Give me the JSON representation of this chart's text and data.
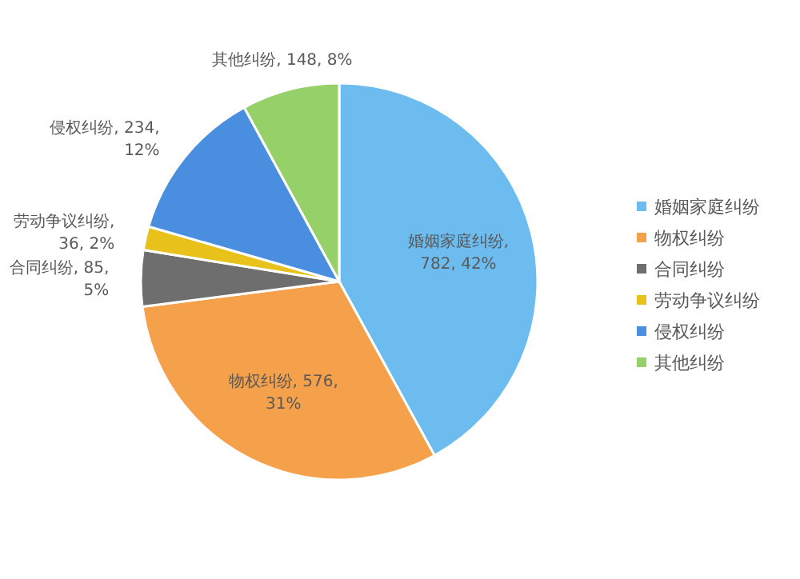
{
  "chart_data": {
    "type": "pie",
    "categories": [
      "婚姻家庭纠纷",
      "物权纠纷",
      "合同纠纷",
      "劳动争议纠纷",
      "侵权纠纷",
      "其他纠纷"
    ],
    "values": [
      782,
      576,
      85,
      36,
      234,
      148
    ],
    "colors": [
      "#6cbcf0",
      "#f5a04a",
      "#6e6e6e",
      "#e8c21a",
      "#4a8ee0",
      "#96d068"
    ],
    "value_labels": [
      "婚姻家庭纠纷, 782, 42%",
      "物权纠纷, 576, 31%",
      "合同纠纷, 85, 5%",
      "劳动争议纠纷, 36, 2%",
      "侵权纠纷, 234, 12%",
      "其他纠纷, 148, 8%"
    ],
    "legend": "right"
  }
}
